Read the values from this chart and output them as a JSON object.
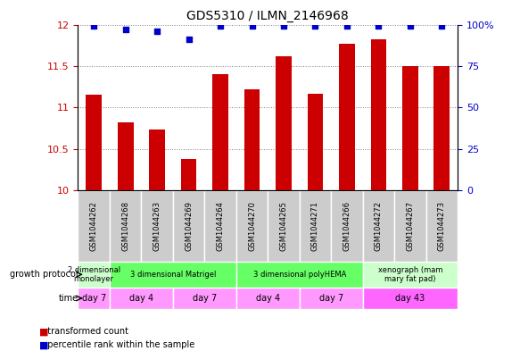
{
  "title": "GDS5310 / ILMN_2146968",
  "samples": [
    "GSM1044262",
    "GSM1044268",
    "GSM1044263",
    "GSM1044269",
    "GSM1044264",
    "GSM1044270",
    "GSM1044265",
    "GSM1044271",
    "GSM1044266",
    "GSM1044272",
    "GSM1044267",
    "GSM1044273"
  ],
  "bar_values": [
    11.15,
    10.82,
    10.73,
    10.38,
    11.4,
    11.22,
    11.62,
    11.17,
    11.77,
    11.82,
    11.5,
    11.5
  ],
  "percentile_values": [
    99,
    97,
    96,
    91,
    99,
    99,
    99,
    99,
    99,
    99,
    99,
    99
  ],
  "bar_color": "#cc0000",
  "percentile_color": "#0000cc",
  "ylim_left": [
    10.0,
    12.0
  ],
  "ylim_right": [
    0,
    100
  ],
  "yticks_left": [
    10.0,
    10.5,
    11.0,
    11.5,
    12.0
  ],
  "yticks_right": [
    0,
    25,
    50,
    75,
    100
  ],
  "ytick_labels_left": [
    "10",
    "10.5",
    "11",
    "11.5",
    "12"
  ],
  "ytick_labels_right": [
    "0",
    "25",
    "50",
    "75",
    "100%"
  ],
  "growth_protocol_groups": [
    {
      "label": "2 dimensional\nmonolayer",
      "start": 0,
      "end": 1,
      "color": "#ccffcc"
    },
    {
      "label": "3 dimensional Matrigel",
      "start": 1,
      "end": 5,
      "color": "#66ff66"
    },
    {
      "label": "3 dimensional polyHEMA",
      "start": 5,
      "end": 9,
      "color": "#66ff66"
    },
    {
      "label": "xenograph (mam\nmary fat pad)",
      "start": 9,
      "end": 12,
      "color": "#ccffcc"
    }
  ],
  "time_groups": [
    {
      "label": "day 7",
      "start": 0,
      "end": 1,
      "color": "#ff99ff"
    },
    {
      "label": "day 4",
      "start": 1,
      "end": 3,
      "color": "#ff99ff"
    },
    {
      "label": "day 7",
      "start": 3,
      "end": 5,
      "color": "#ff99ff"
    },
    {
      "label": "day 4",
      "start": 5,
      "end": 7,
      "color": "#ff99ff"
    },
    {
      "label": "day 7",
      "start": 7,
      "end": 9,
      "color": "#ff99ff"
    },
    {
      "label": "day 43",
      "start": 9,
      "end": 12,
      "color": "#ff66ff"
    }
  ],
  "sample_bg_color": "#cccccc",
  "legend_items": [
    {
      "label": "transformed count",
      "color": "#cc0000",
      "marker": "s"
    },
    {
      "label": "percentile rank within the sample",
      "color": "#0000cc",
      "marker": "s"
    }
  ],
  "growth_protocol_label": "growth protocol",
  "time_label": "time"
}
